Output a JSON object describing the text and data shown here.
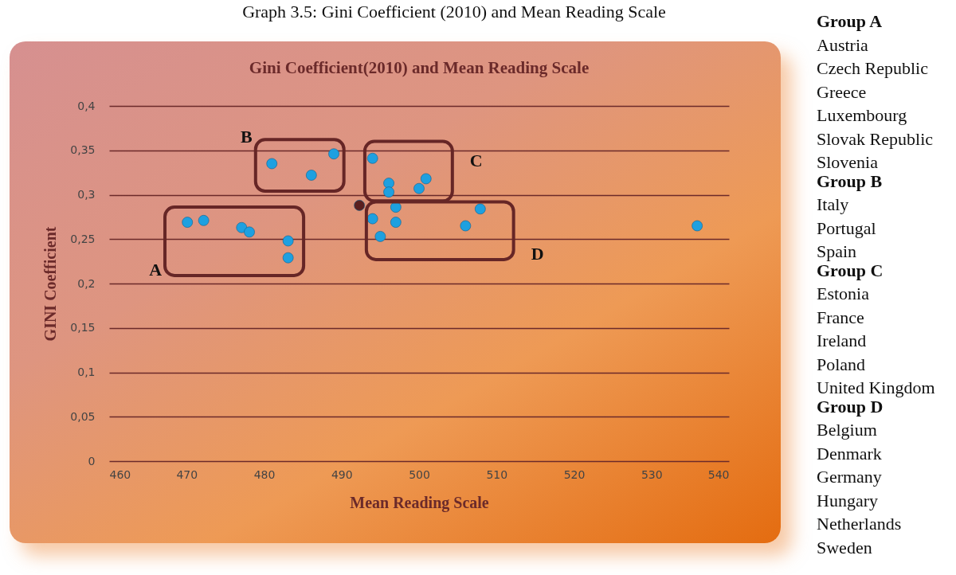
{
  "chart_data": {
    "type": "scatter",
    "title": "Gini Coefficient(2010) and Mean Reading Scale",
    "xlabel": "Mean Reading Scale",
    "ylabel": "GINI  Coefficient",
    "xlim": [
      460,
      540
    ],
    "xticks": [
      460,
      470,
      480,
      490,
      500,
      510,
      520,
      530,
      540
    ],
    "ylim": [
      0,
      0.4
    ],
    "yticks": [
      {
        "value": 0,
        "label": "0"
      },
      {
        "value": 0.05,
        "label": "0,05"
      },
      {
        "value": 0.1,
        "label": "0,1"
      },
      {
        "value": 0.15,
        "label": "0,15"
      },
      {
        "value": 0.2,
        "label": "0,2"
      },
      {
        "value": 0.25,
        "label": "0,25"
      },
      {
        "value": 0.3,
        "label": "0,3"
      },
      {
        "value": 0.35,
        "label": "0,35"
      },
      {
        "value": 0.4,
        "label": "0,4"
      }
    ],
    "grid": "y",
    "legend": false,
    "marker": "circle",
    "series": [
      {
        "color": "#1ea0e0",
        "x": [
          470.1,
          472.2,
          477.1,
          478.1,
          483.1,
          483.1,
          481.0,
          486.1,
          489.0,
          494.0,
          496.1,
          496.1,
          500.0,
          500.9,
          494.0,
          497.0,
          497.0,
          495.0,
          506.0,
          507.9,
          535.9
        ],
        "values": [
          0.269,
          0.271,
          0.263,
          0.258,
          0.248,
          0.229,
          0.335,
          0.322,
          0.346,
          0.341,
          0.313,
          0.303,
          0.307,
          0.318,
          0.273,
          0.286,
          0.269,
          0.253,
          0.265,
          0.284,
          0.265
        ]
      },
      {
        "color": "#5a1f1f",
        "x": [
          492.3
        ],
        "values": [
          0.288
        ]
      }
    ],
    "annotations": [
      "A",
      "B",
      "C",
      "D",
      "Graph 3.5: Gini Coefficient (2010) and Mean Reading Scale",
      "Group A\nAustria\nCzech Republic\nGreece\nLuxembourg\nSlovak Republic\nSlovenia",
      "Group B\nItaly\nPortugal\nSpain",
      "Group C\nEstonia\nFrance\nIreland\nPoland\nUnited Kingdom",
      "Group D\nBelgium\nDenmark\nGermany\nHungary\nNetherlands\nSweden"
    ]
  }
}
